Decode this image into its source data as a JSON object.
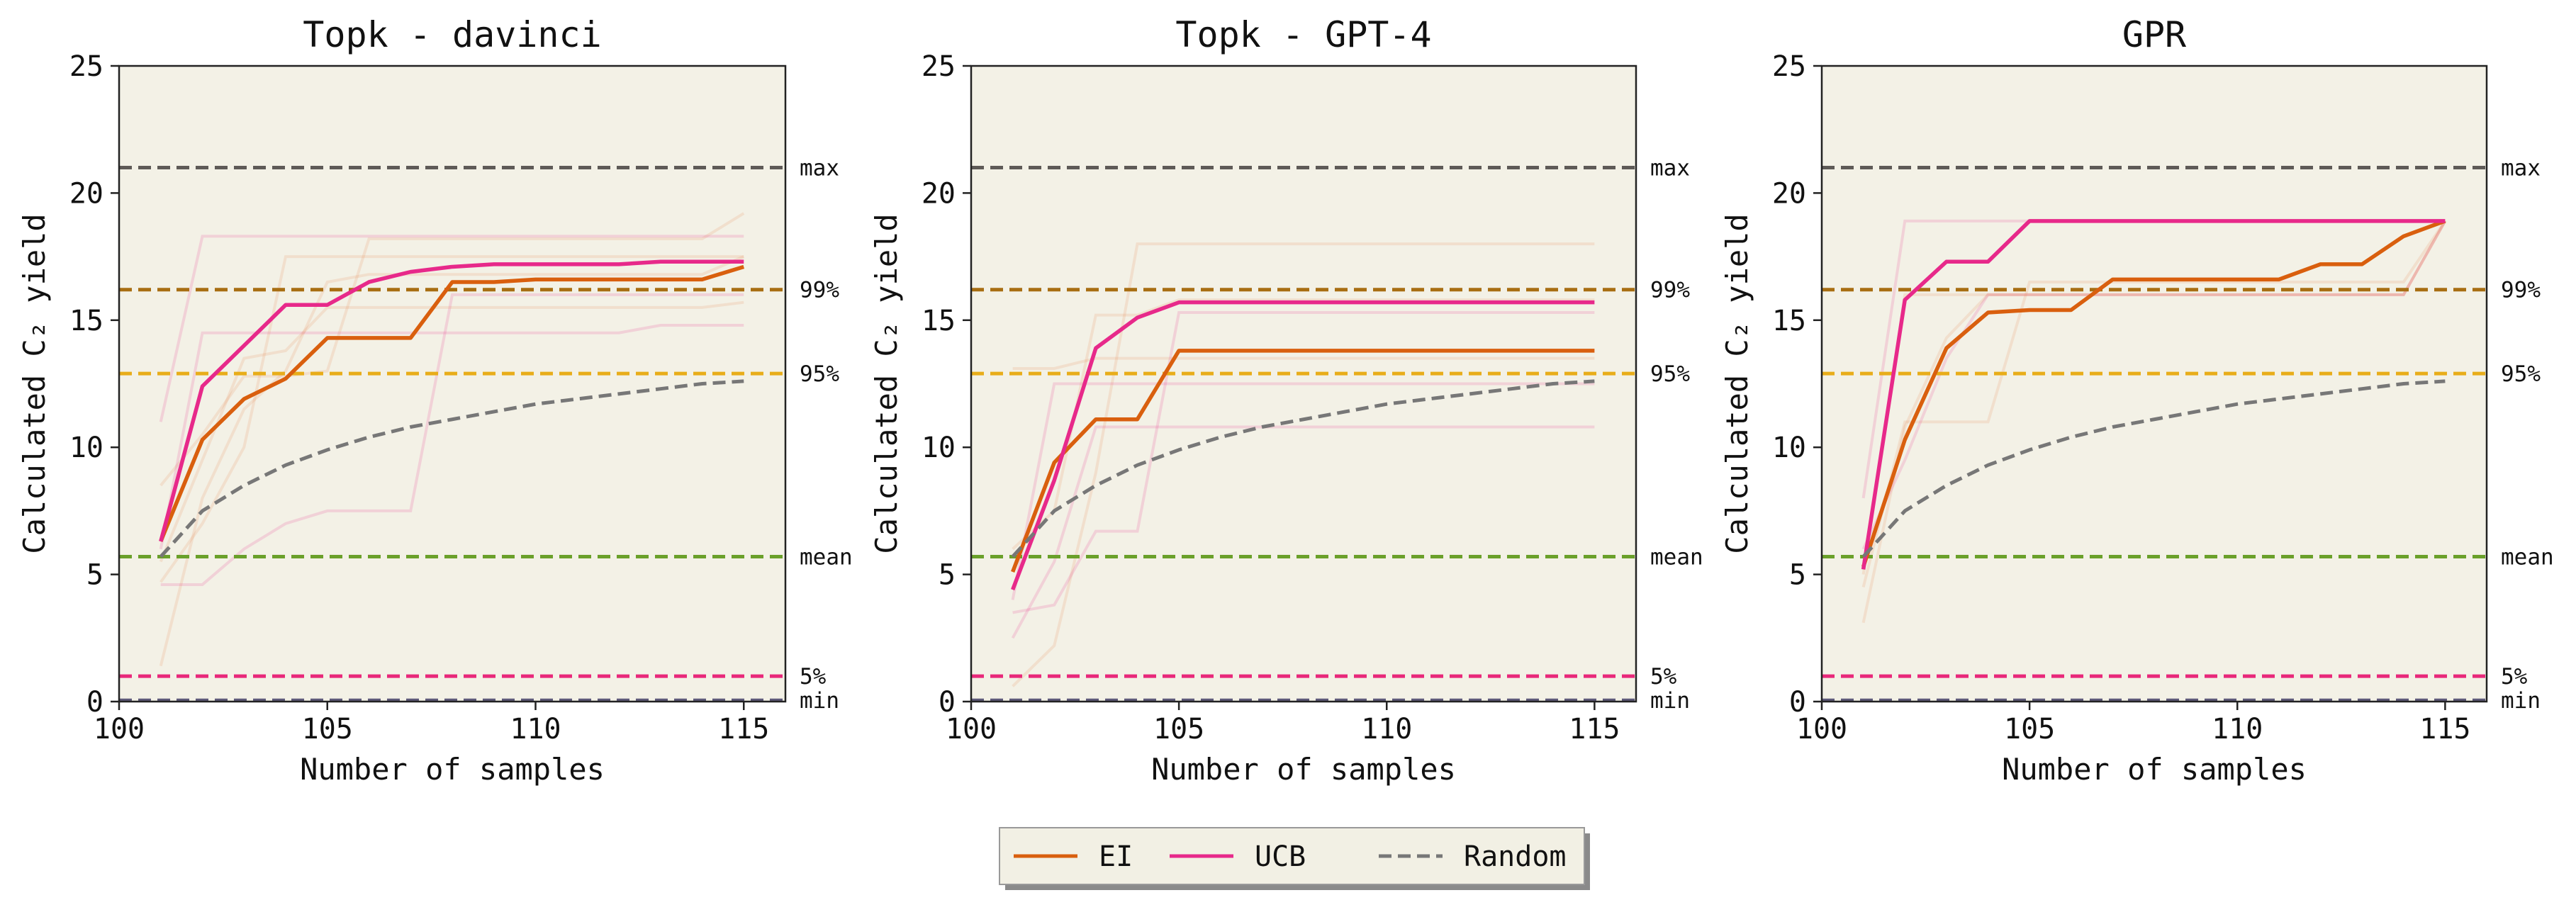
{
  "chart_data": [
    {
      "type": "line",
      "title": "Topk - davinci",
      "xlabel": "Number of samples",
      "ylabel": "Calculated C₂ yield",
      "xlim": [
        100,
        116
      ],
      "ylim": [
        0,
        25
      ],
      "xticks": [
        100,
        105,
        110,
        115
      ],
      "yticks": [
        0,
        5,
        10,
        15,
        20,
        25
      ],
      "grid": false,
      "background": "#f3f1e6",
      "x": [
        101,
        102,
        103,
        104,
        105,
        106,
        107,
        108,
        109,
        110,
        111,
        112,
        113,
        114,
        115
      ],
      "reference_lines": [
        {
          "label": "max",
          "y": 21.0,
          "color": "#5e5a57"
        },
        {
          "label": "99%",
          "y": 16.2,
          "color": "#a86e12"
        },
        {
          "label": "95%",
          "y": 12.9,
          "color": "#e8ad1a"
        },
        {
          "label": "mean",
          "y": 5.7,
          "color": "#6aa02a"
        },
        {
          "label": "5%",
          "y": 1.0,
          "color": "#e8287a"
        },
        {
          "label": "min",
          "y": 0.05,
          "color": "#5e5a7a"
        }
      ],
      "series": [
        {
          "name": "EI",
          "color": "#d95f0e",
          "values": [
            6.3,
            10.3,
            11.9,
            12.7,
            14.3,
            14.3,
            14.3,
            16.5,
            16.5,
            16.6,
            16.6,
            16.6,
            16.6,
            16.6,
            17.1
          ]
        },
        {
          "name": "UCB",
          "color": "#e7298a",
          "values": [
            6.3,
            12.4,
            14.0,
            15.6,
            15.6,
            16.5,
            16.9,
            17.1,
            17.2,
            17.2,
            17.2,
            17.2,
            17.3,
            17.3,
            17.3
          ]
        },
        {
          "name": "Random",
          "color": "#777777",
          "dashed": true,
          "values": [
            5.7,
            7.5,
            8.5,
            9.3,
            9.9,
            10.4,
            10.8,
            11.1,
            11.4,
            11.7,
            11.9,
            12.1,
            12.3,
            12.5,
            12.6
          ]
        }
      ],
      "faint_runs": [
        [
          1.4,
          8.0,
          11.5,
          13.0,
          16.5,
          16.8,
          16.8,
          16.8,
          16.8,
          16.8,
          16.8,
          16.8,
          16.8,
          16.8,
          17.5
        ],
        [
          4.6,
          4.6,
          6.0,
          7.0,
          7.5,
          7.5,
          7.5,
          16.0,
          16.0,
          16.0,
          16.0,
          16.0,
          16.0,
          16.0,
          16.0
        ],
        [
          8.5,
          10.5,
          12.8,
          12.8,
          13.0,
          18.2,
          18.2,
          18.2,
          18.2,
          18.2,
          18.2,
          18.2,
          18.2,
          18.2,
          19.2
        ],
        [
          11.0,
          18.3,
          18.3,
          18.3,
          18.3,
          18.3,
          18.3,
          18.3,
          18.3,
          18.3,
          18.3,
          18.3,
          18.3,
          18.3,
          18.3
        ],
        [
          4.7,
          7.0,
          10.0,
          17.5,
          17.5,
          17.5,
          17.5,
          17.5,
          17.5,
          17.5,
          17.5,
          17.5,
          17.5,
          17.5,
          17.5
        ],
        [
          6.0,
          14.5,
          14.5,
          14.5,
          14.5,
          14.5,
          14.5,
          14.5,
          14.5,
          14.5,
          14.5,
          14.5,
          14.8,
          14.8,
          14.8
        ],
        [
          5.5,
          9.5,
          13.5,
          13.8,
          15.5,
          15.5,
          15.5,
          15.5,
          15.5,
          15.5,
          15.5,
          15.5,
          15.5,
          15.5,
          15.7
        ]
      ]
    },
    {
      "type": "line",
      "title": "Topk - GPT-4",
      "xlabel": "Number of samples",
      "ylabel": "Calculated C₂ yield",
      "xlim": [
        100,
        116
      ],
      "ylim": [
        0,
        25
      ],
      "xticks": [
        100,
        105,
        110,
        115
      ],
      "yticks": [
        0,
        5,
        10,
        15,
        20,
        25
      ],
      "grid": false,
      "background": "#f3f1e6",
      "x": [
        101,
        102,
        103,
        104,
        105,
        106,
        107,
        108,
        109,
        110,
        111,
        112,
        113,
        114,
        115
      ],
      "reference_lines": [
        {
          "label": "max",
          "y": 21.0,
          "color": "#5e5a57"
        },
        {
          "label": "99%",
          "y": 16.2,
          "color": "#a86e12"
        },
        {
          "label": "95%",
          "y": 12.9,
          "color": "#e8ad1a"
        },
        {
          "label": "mean",
          "y": 5.7,
          "color": "#6aa02a"
        },
        {
          "label": "5%",
          "y": 1.0,
          "color": "#e8287a"
        },
        {
          "label": "min",
          "y": 0.05,
          "color": "#5e5a7a"
        }
      ],
      "series": [
        {
          "name": "EI",
          "color": "#d95f0e",
          "values": [
            5.1,
            9.4,
            11.1,
            11.1,
            13.8,
            13.8,
            13.8,
            13.8,
            13.8,
            13.8,
            13.8,
            13.8,
            13.8,
            13.8,
            13.8
          ]
        },
        {
          "name": "UCB",
          "color": "#e7298a",
          "values": [
            4.4,
            8.7,
            13.9,
            15.1,
            15.7,
            15.7,
            15.7,
            15.7,
            15.7,
            15.7,
            15.7,
            15.7,
            15.7,
            15.7,
            15.7
          ]
        },
        {
          "name": "Random",
          "color": "#777777",
          "dashed": true,
          "values": [
            5.7,
            7.5,
            8.5,
            9.3,
            9.9,
            10.4,
            10.8,
            11.1,
            11.4,
            11.7,
            11.9,
            12.1,
            12.3,
            12.5,
            12.6
          ]
        }
      ],
      "faint_runs": [
        [
          0.6,
          2.2,
          9.0,
          18.0,
          18.0,
          18.0,
          18.0,
          18.0,
          18.0,
          18.0,
          18.0,
          18.0,
          18.0,
          18.0,
          18.0
        ],
        [
          3.5,
          3.8,
          6.7,
          6.7,
          15.3,
          15.3,
          15.3,
          15.3,
          15.3,
          15.3,
          15.3,
          15.3,
          15.3,
          15.3,
          15.3
        ],
        [
          13.1,
          13.1,
          13.5,
          13.5,
          13.5,
          13.5,
          13.5,
          13.5,
          13.5,
          13.5,
          13.5,
          13.5,
          13.5,
          13.5,
          13.5
        ],
        [
          2.5,
          5.5,
          10.8,
          10.8,
          10.8,
          10.8,
          10.8,
          10.8,
          10.8,
          10.8,
          10.8,
          10.8,
          10.8,
          10.8,
          10.8
        ],
        [
          6.0,
          7.5,
          15.2,
          15.2,
          15.8,
          15.8,
          15.8,
          15.8,
          15.8,
          15.8,
          15.8,
          15.8,
          15.8,
          15.8,
          15.8
        ],
        [
          4.0,
          12.5,
          12.5,
          12.5,
          12.5,
          12.5,
          12.5,
          12.5,
          12.5,
          12.5,
          12.5,
          12.5,
          12.5,
          12.5,
          12.5
        ]
      ]
    },
    {
      "type": "line",
      "title": "GPR",
      "xlabel": "Number of samples",
      "ylabel": "Calculated C₂ yield",
      "xlim": [
        100,
        116
      ],
      "ylim": [
        0,
        25
      ],
      "xticks": [
        100,
        105,
        110,
        115
      ],
      "yticks": [
        0,
        5,
        10,
        15,
        20,
        25
      ],
      "grid": false,
      "background": "#f3f1e6",
      "x": [
        101,
        102,
        103,
        104,
        105,
        106,
        107,
        108,
        109,
        110,
        111,
        112,
        113,
        114,
        115
      ],
      "reference_lines": [
        {
          "label": "max",
          "y": 21.0,
          "color": "#5e5a57"
        },
        {
          "label": "99%",
          "y": 16.2,
          "color": "#a86e12"
        },
        {
          "label": "95%",
          "y": 12.9,
          "color": "#e8ad1a"
        },
        {
          "label": "mean",
          "y": 5.7,
          "color": "#6aa02a"
        },
        {
          "label": "5%",
          "y": 1.0,
          "color": "#e8287a"
        },
        {
          "label": "min",
          "y": 0.05,
          "color": "#5e5a7a"
        }
      ],
      "series": [
        {
          "name": "EI",
          "color": "#d95f0e",
          "values": [
            5.3,
            10.3,
            13.9,
            15.3,
            15.4,
            15.4,
            16.6,
            16.6,
            16.6,
            16.6,
            16.6,
            17.2,
            17.2,
            18.3,
            18.9
          ]
        },
        {
          "name": "UCB",
          "color": "#e7298a",
          "values": [
            5.2,
            15.8,
            17.3,
            17.3,
            18.9,
            18.9,
            18.9,
            18.9,
            18.9,
            18.9,
            18.9,
            18.9,
            18.9,
            18.9,
            18.9
          ]
        },
        {
          "name": "Random",
          "color": "#777777",
          "dashed": true,
          "values": [
            5.7,
            7.5,
            8.5,
            9.3,
            9.9,
            10.4,
            10.8,
            11.1,
            11.4,
            11.7,
            11.9,
            12.1,
            12.3,
            12.5,
            12.6
          ]
        }
      ],
      "faint_runs": [
        [
          3.1,
          10.8,
          14.3,
          16.0,
          16.0,
          16.0,
          16.0,
          16.0,
          16.0,
          16.0,
          16.0,
          16.0,
          16.0,
          16.0,
          18.9
        ],
        [
          8.0,
          18.9,
          18.9,
          18.9,
          18.9,
          18.9,
          18.9,
          18.9,
          18.9,
          18.9,
          18.9,
          18.9,
          18.9,
          18.9,
          18.9
        ],
        [
          4.5,
          11.0,
          11.0,
          11.0,
          16.5,
          16.5,
          16.5,
          16.5,
          16.5,
          16.5,
          16.5,
          16.5,
          16.5,
          16.5,
          18.9
        ],
        [
          6.0,
          9.5,
          13.5,
          16.0,
          16.0,
          16.0,
          16.0,
          16.0,
          16.0,
          16.0,
          16.0,
          16.0,
          16.0,
          16.0,
          18.9
        ],
        [
          5.0,
          16.0,
          16.0,
          16.0,
          16.0,
          16.0,
          16.0,
          16.0,
          16.0,
          16.0,
          16.0,
          16.0,
          16.0,
          16.0,
          18.9
        ]
      ]
    }
  ],
  "legend": {
    "placement": "bottom-center",
    "items": [
      {
        "label": "EI",
        "color": "#d95f0e",
        "dashed": false
      },
      {
        "label": "UCB",
        "color": "#e7298a",
        "dashed": false
      },
      {
        "label": "Random",
        "color": "#777777",
        "dashed": true
      }
    ]
  }
}
